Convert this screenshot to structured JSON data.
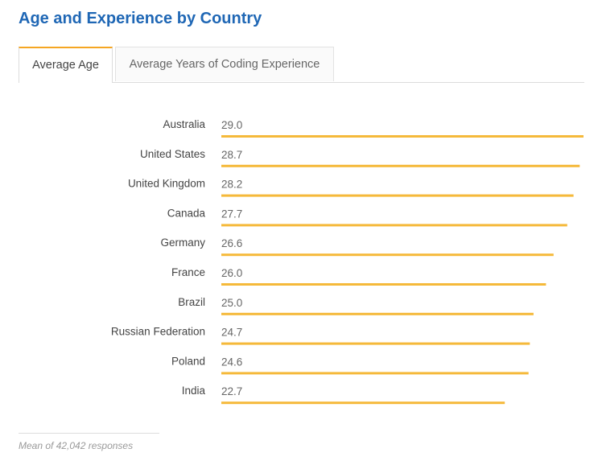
{
  "header": {
    "title": "Age and Experience by Country"
  },
  "tabs": [
    {
      "label": "Average Age",
      "active": true
    },
    {
      "label": "Average Years of Coding Experience",
      "active": false
    }
  ],
  "colors": {
    "title": "#1f67b5",
    "bar": "#f5b93a",
    "active_tab_accent": "#f5a623"
  },
  "chart_data": {
    "type": "bar",
    "orientation": "horizontal",
    "title": "",
    "xlabel": "",
    "ylabel": "",
    "xlim": [
      0,
      29.0
    ],
    "grid": false,
    "legend": "none",
    "categories": [
      "Australia",
      "United States",
      "United Kingdom",
      "Canada",
      "Germany",
      "France",
      "Brazil",
      "Russian Federation",
      "Poland",
      "India"
    ],
    "values": [
      29.0,
      28.7,
      28.2,
      27.7,
      26.6,
      26.0,
      25.0,
      24.7,
      24.6,
      22.7
    ],
    "value_labels": [
      "29.0",
      "28.7",
      "28.2",
      "27.7",
      "26.6",
      "26.0",
      "25.0",
      "24.7",
      "24.6",
      "22.7"
    ]
  },
  "footer": {
    "note": "Mean of 42,042 responses"
  }
}
